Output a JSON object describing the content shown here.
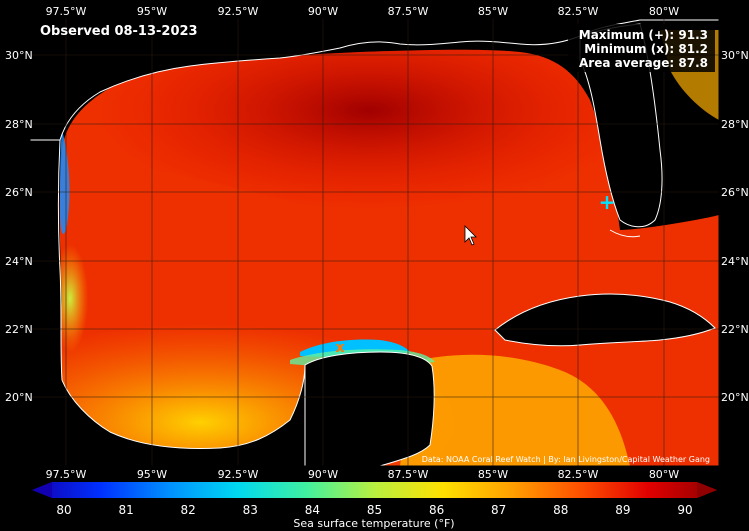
{
  "map": {
    "observed_label": "Observed 08-13-2023",
    "stats": {
      "maximum": "Maximum (+): 91.3",
      "minimum": "Minimum (x): 81.2",
      "average": "Area average: 87.8"
    },
    "credit": "Data: NOAA Coral Reef Watch | By: Ian Livingston/Capital Weather Gang",
    "lon_ticks": [
      "97.5°W",
      "95°W",
      "92.5°W",
      "90°W",
      "87.5°W",
      "85°W",
      "82.5°W",
      "80°W"
    ],
    "lat_ticks": [
      "30°N",
      "28°N",
      "26°N",
      "24°N",
      "22°N",
      "20°N"
    ],
    "markers": {
      "maximum_symbol": "+",
      "minimum_symbol": "x"
    },
    "colors": {
      "land": "#000000",
      "coastline": "#ffffff",
      "grid": "#2a1a10",
      "max_marker": "#00e5ff",
      "min_marker": "#ff7a00"
    }
  },
  "colorbar": {
    "label": "Sea surface temperature (°F)",
    "ticks": [
      "80",
      "81",
      "82",
      "83",
      "84",
      "85",
      "86",
      "87",
      "88",
      "89",
      "90"
    ],
    "colors": [
      "#1200b0",
      "#0030ff",
      "#0090ff",
      "#00d8f0",
      "#40f0a0",
      "#b8f040",
      "#ffe000",
      "#ffa000",
      "#ff5000",
      "#e00000",
      "#900000"
    ]
  }
}
